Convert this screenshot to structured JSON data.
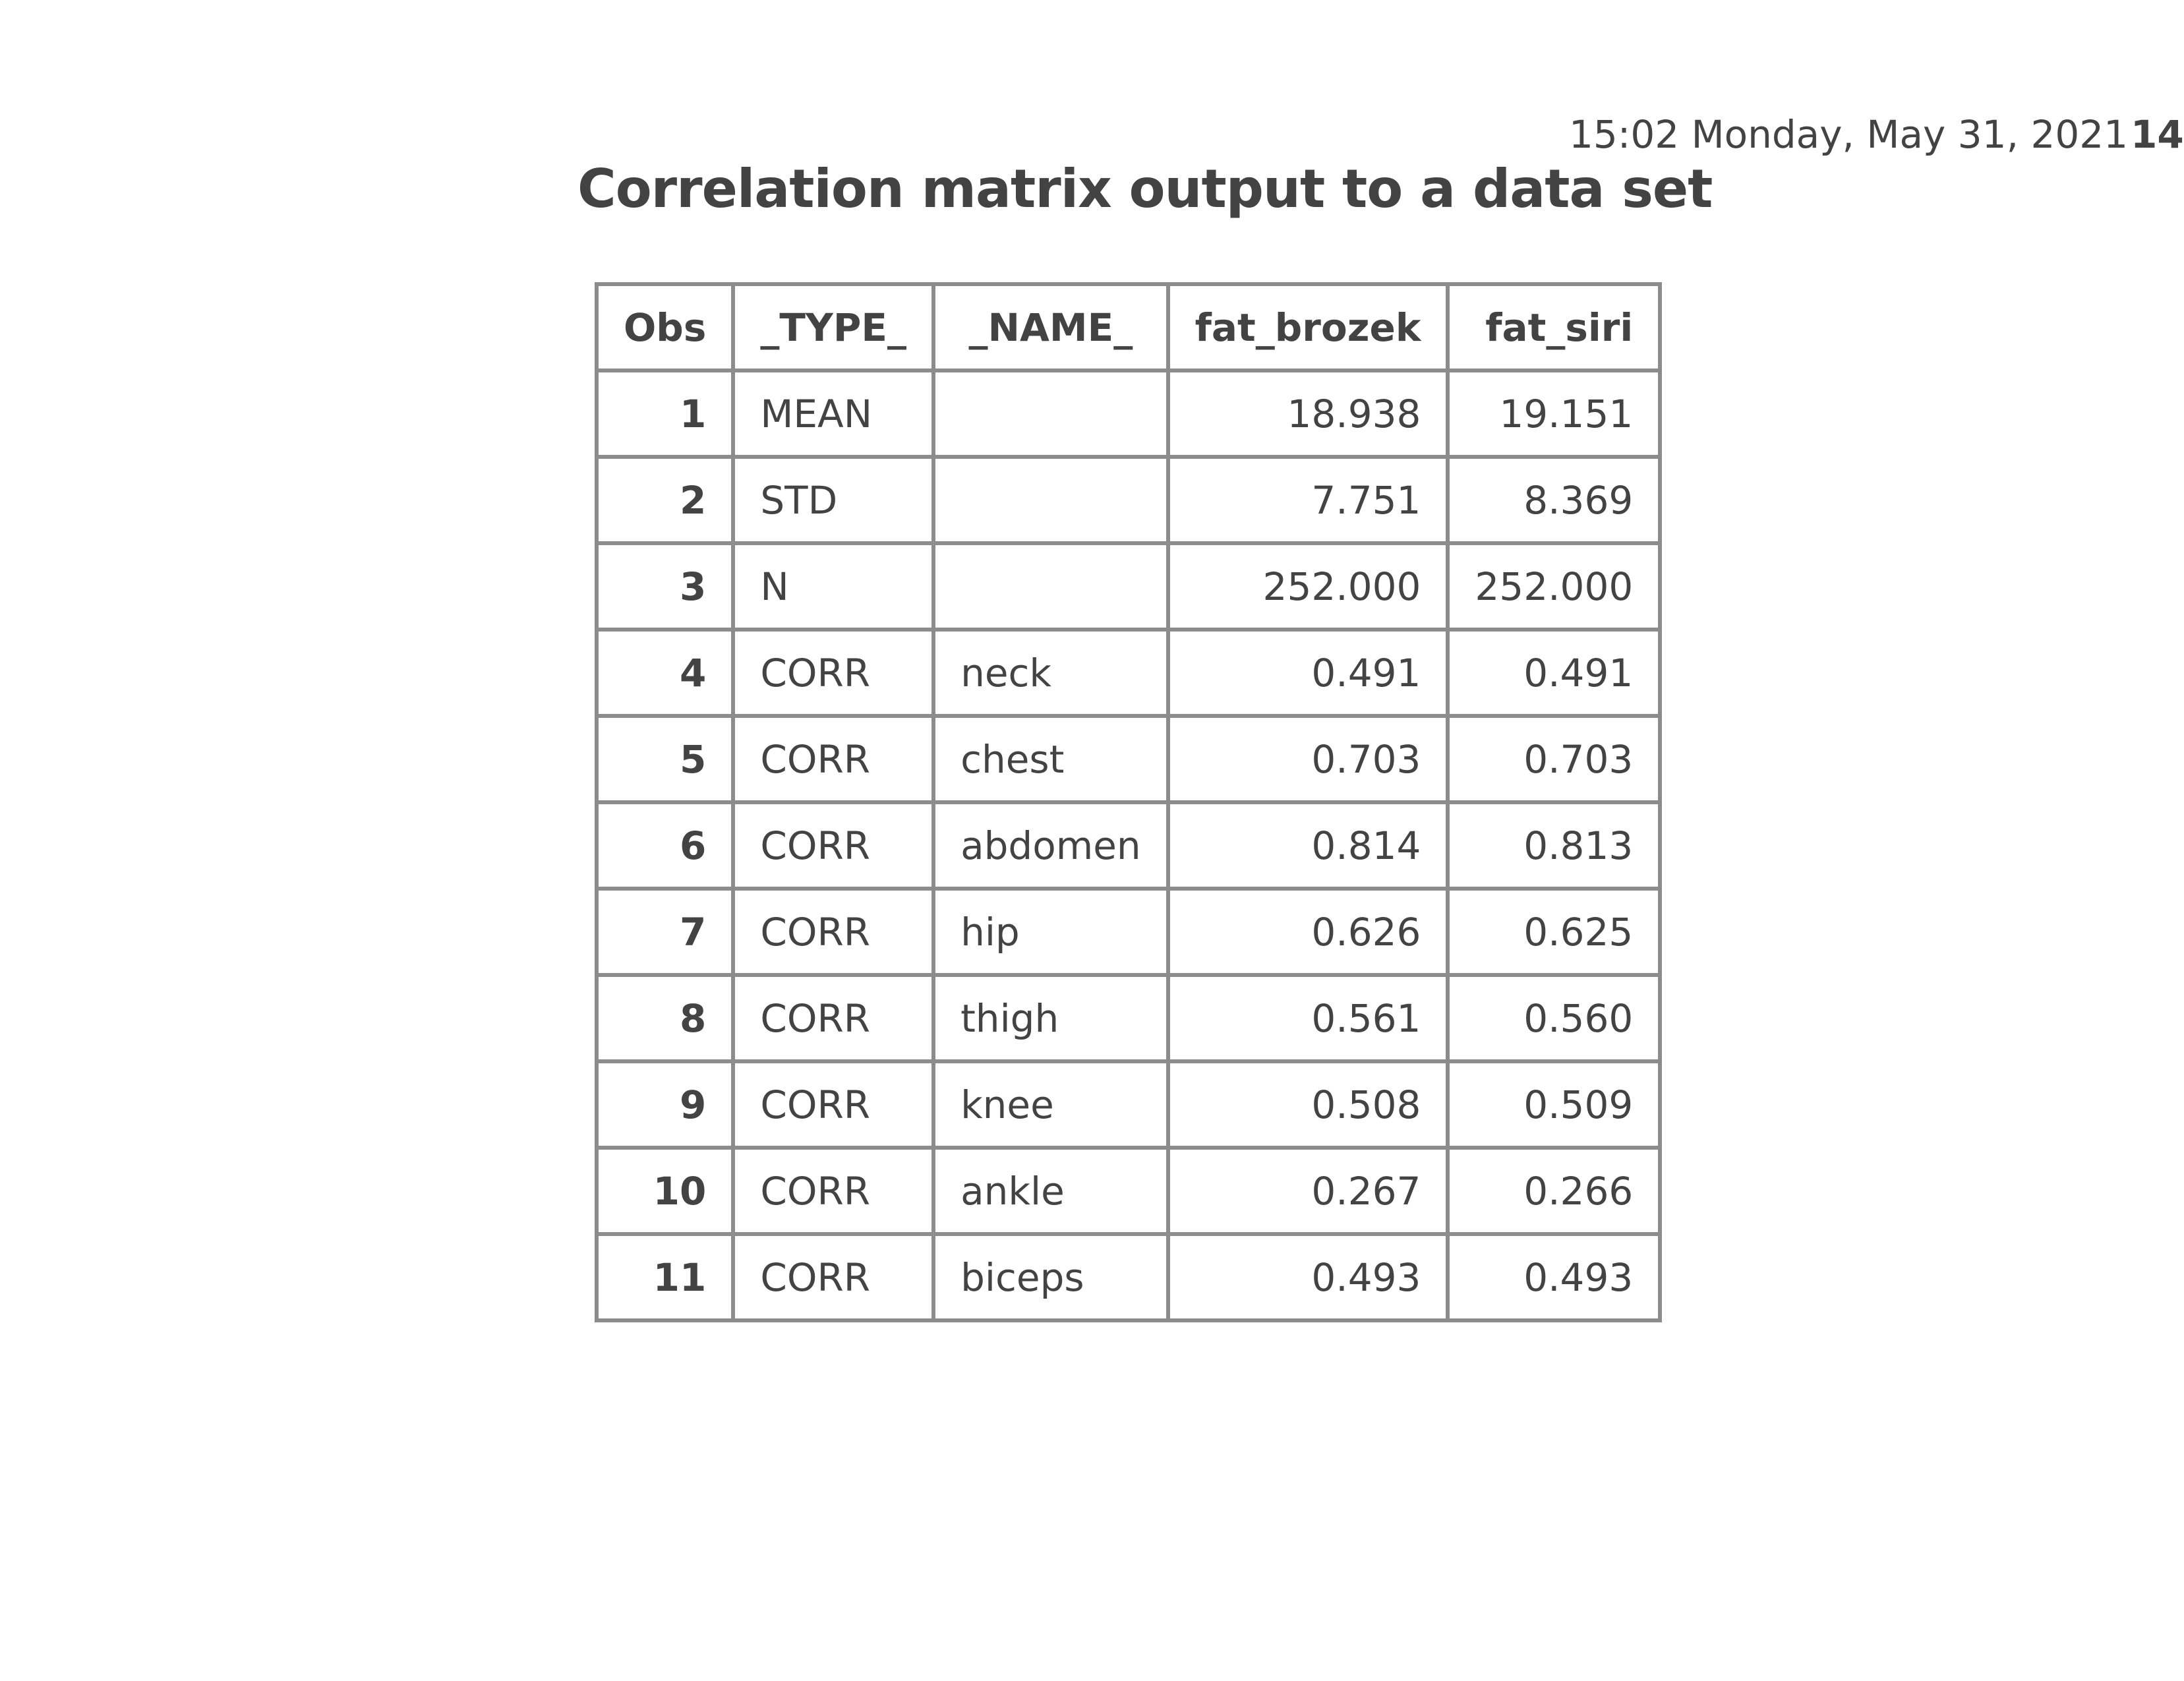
{
  "header": {
    "datetime": "15:02 Monday, May 31, 2021",
    "page_number": "14"
  },
  "title": "Correlation matrix output to a data set",
  "table": {
    "columns": [
      "Obs",
      "_TYPE_",
      "_NAME_",
      "fat_brozek",
      "fat_siri"
    ],
    "rows": [
      {
        "obs": "1",
        "type": "MEAN",
        "name": "",
        "fat_brozek": "18.938",
        "fat_siri": "19.151"
      },
      {
        "obs": "2",
        "type": "STD",
        "name": "",
        "fat_brozek": "7.751",
        "fat_siri": "8.369"
      },
      {
        "obs": "3",
        "type": "N",
        "name": "",
        "fat_brozek": "252.000",
        "fat_siri": "252.000"
      },
      {
        "obs": "4",
        "type": "CORR",
        "name": "neck",
        "fat_brozek": "0.491",
        "fat_siri": "0.491"
      },
      {
        "obs": "5",
        "type": "CORR",
        "name": "chest",
        "fat_brozek": "0.703",
        "fat_siri": "0.703"
      },
      {
        "obs": "6",
        "type": "CORR",
        "name": "abdomen",
        "fat_brozek": "0.814",
        "fat_siri": "0.813"
      },
      {
        "obs": "7",
        "type": "CORR",
        "name": "hip",
        "fat_brozek": "0.626",
        "fat_siri": "0.625"
      },
      {
        "obs": "8",
        "type": "CORR",
        "name": "thigh",
        "fat_brozek": "0.561",
        "fat_siri": "0.560"
      },
      {
        "obs": "9",
        "type": "CORR",
        "name": "knee",
        "fat_brozek": "0.508",
        "fat_siri": "0.509"
      },
      {
        "obs": "10",
        "type": "CORR",
        "name": "ankle",
        "fat_brozek": "0.267",
        "fat_siri": "0.266"
      },
      {
        "obs": "11",
        "type": "CORR",
        "name": "biceps",
        "fat_brozek": "0.493",
        "fat_siri": "0.493"
      }
    ]
  },
  "colors": {
    "text": "#434343",
    "border": "#8c8c8c",
    "background": "#ffffff"
  }
}
